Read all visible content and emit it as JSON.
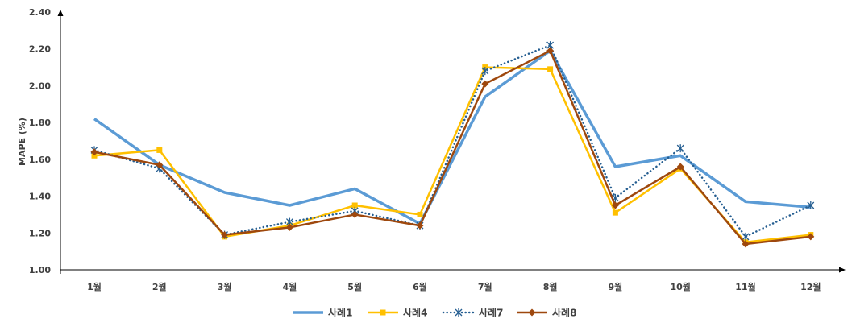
{
  "chart_data": {
    "type": "line",
    "title": "",
    "xlabel": "",
    "ylabel": "MAPE (%)",
    "ylim": [
      1.0,
      2.4
    ],
    "yticks": [
      "1.00",
      "1.20",
      "1.40",
      "1.60",
      "1.80",
      "2.00",
      "2.20",
      "2.40"
    ],
    "categories": [
      "1월",
      "2월",
      "3월",
      "4월",
      "5월",
      "6월",
      "7월",
      "8월",
      "9월",
      "10월",
      "11월",
      "12월"
    ],
    "grid": false,
    "legend_position": "bottom",
    "series": [
      {
        "name": "사례1",
        "color": "#5B9BD5",
        "marker": "none",
        "dash": "solid",
        "values": [
          1.82,
          1.57,
          1.42,
          1.35,
          1.44,
          1.25,
          1.94,
          2.19,
          1.56,
          1.62,
          1.37,
          1.34
        ]
      },
      {
        "name": "사례4",
        "color": "#FFC000",
        "marker": "square",
        "dash": "solid",
        "values": [
          1.62,
          1.65,
          1.18,
          1.24,
          1.35,
          1.3,
          2.1,
          2.09,
          1.31,
          1.55,
          1.15,
          1.19
        ]
      },
      {
        "name": "사례7",
        "color": "#255E91",
        "marker": "star",
        "dash": "dotted",
        "values": [
          1.65,
          1.55,
          1.19,
          1.26,
          1.32,
          1.24,
          2.08,
          2.22,
          1.39,
          1.66,
          1.18,
          1.35
        ]
      },
      {
        "name": "사례8",
        "color": "#9E480E",
        "marker": "diamond",
        "dash": "solid",
        "values": [
          1.64,
          1.57,
          1.19,
          1.23,
          1.3,
          1.24,
          2.01,
          2.19,
          1.35,
          1.56,
          1.14,
          1.18
        ]
      }
    ]
  }
}
